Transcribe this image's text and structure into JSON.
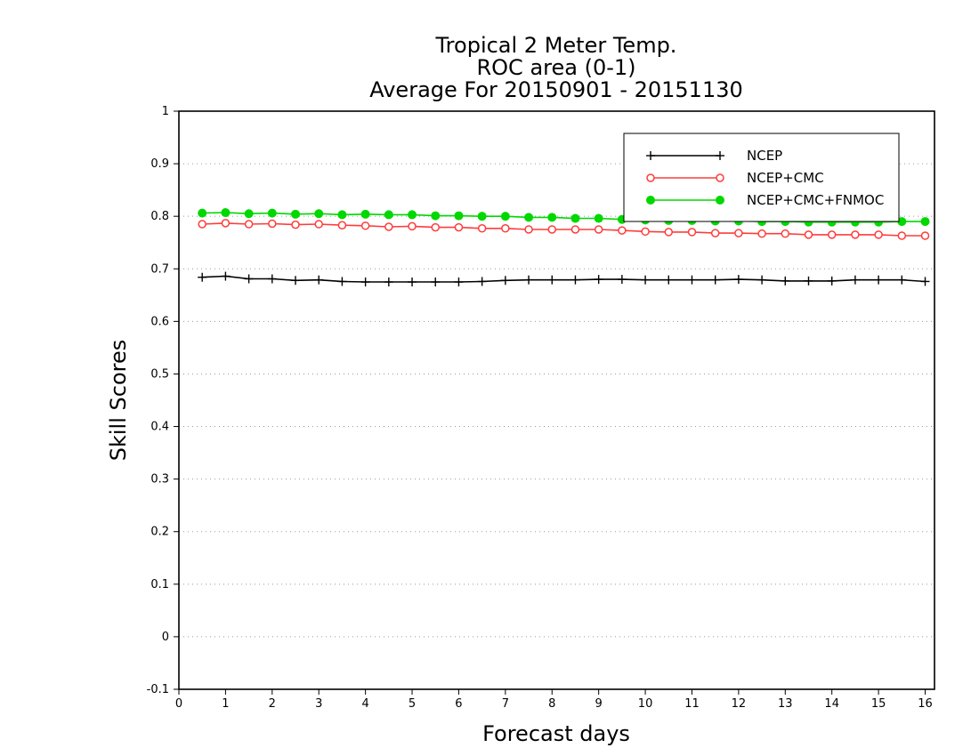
{
  "chart_data": {
    "type": "line",
    "title": [
      "Tropical 2 Meter Temp.",
      "ROC area (0-1)",
      "Average For 20150901 - 20151130"
    ],
    "xlabel": "Forecast days",
    "ylabel": "Skill Scores",
    "xlim": [
      0,
      16.2
    ],
    "ylim": [
      -0.1,
      1
    ],
    "x_ticks": [
      0,
      1,
      2,
      3,
      4,
      5,
      6,
      7,
      8,
      9,
      10,
      11,
      12,
      13,
      14,
      15,
      16
    ],
    "x_tick_labels": [
      "0",
      "1",
      "2",
      "3",
      "4",
      "5",
      "6",
      "7",
      "8",
      "9",
      "10",
      "11",
      "12",
      "13",
      "14",
      "15",
      "16"
    ],
    "y_ticks": [
      -0.1,
      0,
      0.1,
      0.2,
      0.3,
      0.4,
      0.5,
      0.6,
      0.7,
      0.8,
      0.9,
      1
    ],
    "y_tick_labels": [
      "-0.1",
      "0",
      "0.1",
      "0.2",
      "0.3",
      "0.4",
      "0.5",
      "0.6",
      "0.7",
      "0.8",
      "0.9",
      "1"
    ],
    "grid": "dotted horizontal",
    "legend": "top-right",
    "x": [
      0.5,
      1,
      1.5,
      2,
      2.5,
      3,
      3.5,
      4,
      4.5,
      5,
      5.5,
      6,
      6.5,
      7,
      7.5,
      8,
      8.5,
      9,
      9.5,
      10,
      10.5,
      11,
      11.5,
      12,
      12.5,
      13,
      13.5,
      14,
      14.5,
      15,
      15.5,
      16
    ],
    "series": [
      {
        "name": "NCEP",
        "color": "#000000",
        "marker": "plus",
        "values": [
          0.684,
          0.686,
          0.681,
          0.681,
          0.678,
          0.679,
          0.676,
          0.675,
          0.675,
          0.675,
          0.675,
          0.675,
          0.676,
          0.678,
          0.679,
          0.679,
          0.679,
          0.68,
          0.68,
          0.679,
          0.679,
          0.679,
          0.679,
          0.68,
          0.679,
          0.677,
          0.677,
          0.677,
          0.679,
          0.679,
          0.679,
          0.676
        ]
      },
      {
        "name": "NCEP+CMC",
        "color": "#ff3b3b",
        "marker": "open-circle",
        "values": [
          0.785,
          0.787,
          0.785,
          0.786,
          0.784,
          0.785,
          0.783,
          0.782,
          0.78,
          0.781,
          0.779,
          0.779,
          0.777,
          0.777,
          0.775,
          0.775,
          0.775,
          0.775,
          0.773,
          0.771,
          0.77,
          0.77,
          0.768,
          0.768,
          0.767,
          0.767,
          0.765,
          0.765,
          0.765,
          0.765,
          0.763,
          0.763
        ]
      },
      {
        "name": "NCEP+CMC+FNMOC",
        "color": "#00d800",
        "marker": "filled-circle",
        "values": [
          0.806,
          0.807,
          0.805,
          0.806,
          0.804,
          0.805,
          0.803,
          0.804,
          0.803,
          0.803,
          0.801,
          0.801,
          0.8,
          0.8,
          0.798,
          0.798,
          0.796,
          0.796,
          0.794,
          0.793,
          0.792,
          0.792,
          0.791,
          0.791,
          0.79,
          0.79,
          0.789,
          0.789,
          0.789,
          0.789,
          0.79,
          0.79
        ]
      }
    ]
  }
}
